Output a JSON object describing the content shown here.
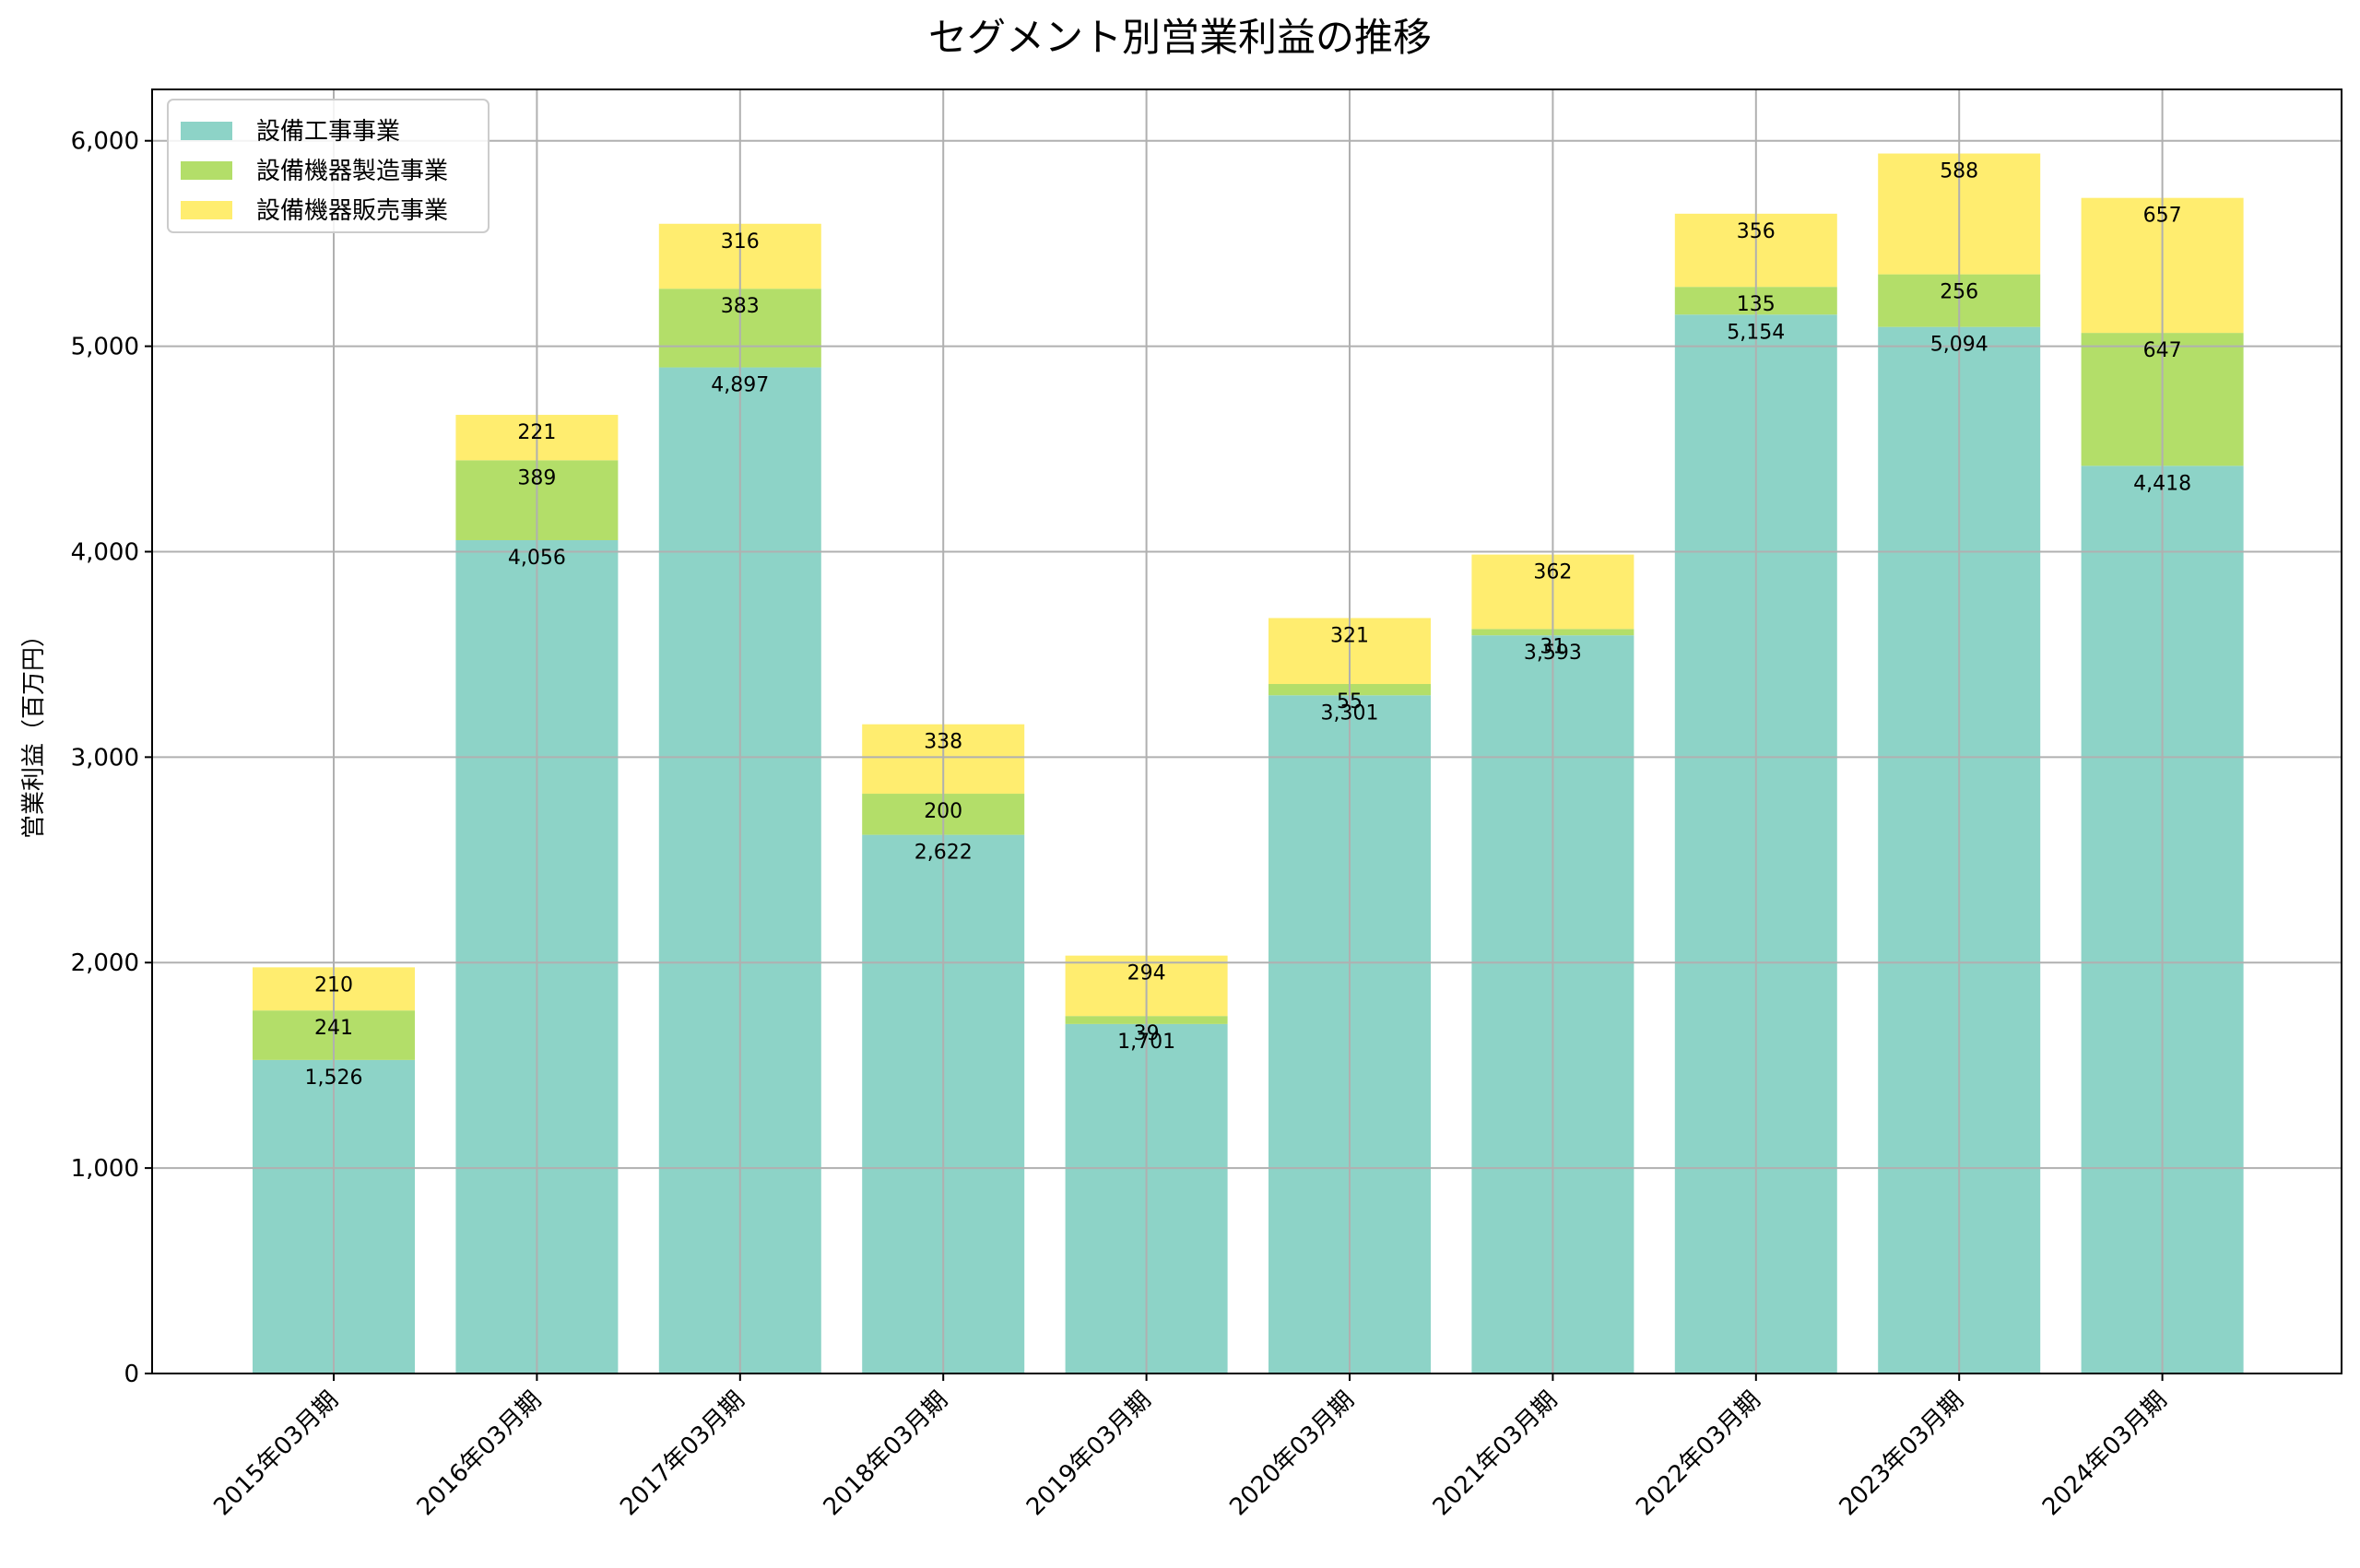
{
  "chart_data": {
    "type": "bar",
    "stacked": true,
    "title": "セグメント別営業利益の推移",
    "xlabel": "",
    "ylabel": "営業利益（百万円）",
    "ylim": [
      0,
      6250
    ],
    "yticks": [
      0,
      1000,
      2000,
      3000,
      4000,
      5000,
      6000
    ],
    "ytick_labels": [
      "0",
      "1,000",
      "2,000",
      "3,000",
      "4,000",
      "5,000",
      "6,000"
    ],
    "grid": true,
    "legend_position": "top-left",
    "categories": [
      "2015年03月期",
      "2016年03月期",
      "2017年03月期",
      "2018年03月期",
      "2019年03月期",
      "2020年03月期",
      "2021年03月期",
      "2022年03月期",
      "2023年03月期",
      "2024年03月期"
    ],
    "series": [
      {
        "name": "設備工事事業",
        "color": "#8dd3c7",
        "values": [
          1526,
          4056,
          4897,
          2622,
          1701,
          3301,
          3593,
          5154,
          5094,
          4418
        ],
        "labels": [
          "1,526",
          "4,056",
          "4,897",
          "2,622",
          "1,701",
          "3,301",
          "3,593",
          "5,154",
          "5,094",
          "4,418"
        ]
      },
      {
        "name": "設備機器製造事業",
        "color": "#b3de69",
        "values": [
          241,
          389,
          383,
          200,
          39,
          55,
          31,
          135,
          256,
          647
        ],
        "labels": [
          "241",
          "389",
          "383",
          "200",
          "39",
          "55",
          "31",
          "135",
          "256",
          "647"
        ]
      },
      {
        "name": "設備機器販売事業",
        "color": "#ffed6f",
        "values": [
          210,
          221,
          316,
          338,
          294,
          321,
          362,
          356,
          588,
          657
        ],
        "labels": [
          "210",
          "221",
          "316",
          "338",
          "294",
          "321",
          "362",
          "356",
          "588",
          "657"
        ]
      }
    ]
  }
}
